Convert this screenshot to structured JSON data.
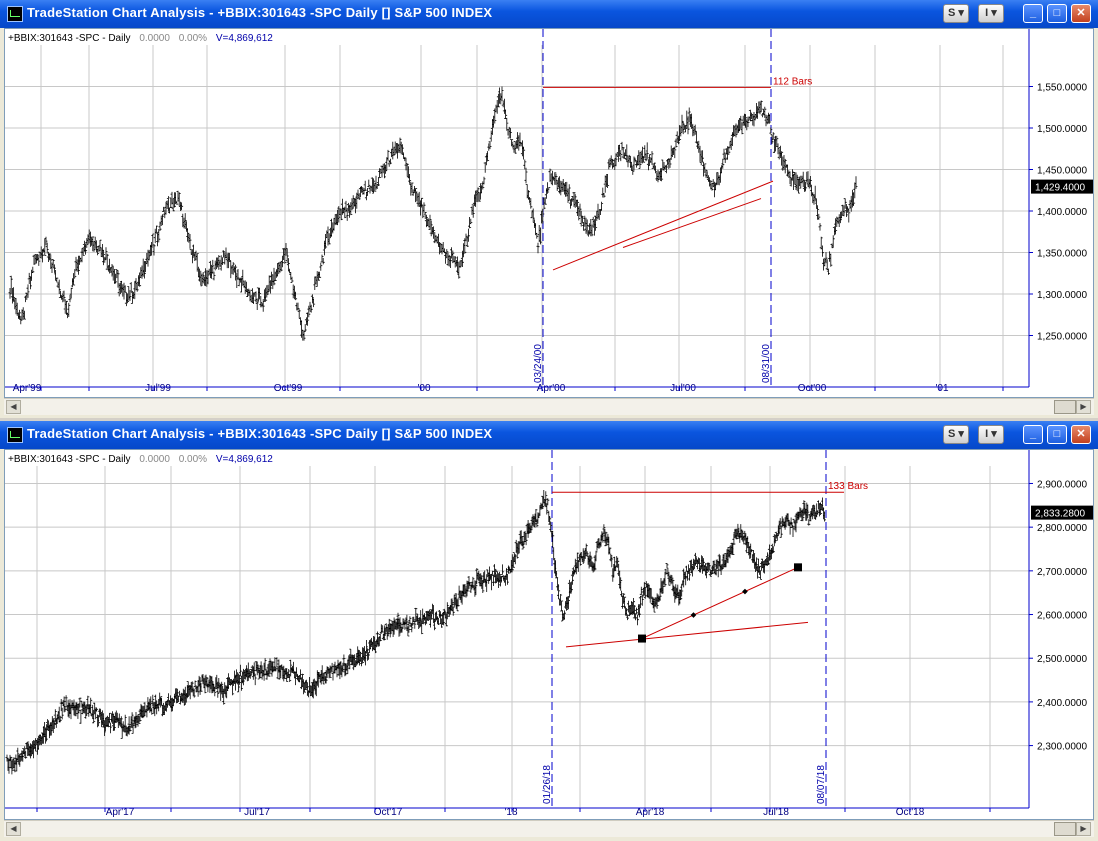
{
  "windows": [
    {
      "title": "TradeStation Chart Analysis - +BBIX:301643 -SPC Daily [] S&P 500 INDEX",
      "buttons": {
        "s_label": "S",
        "i_label": "I",
        "minimize": "_",
        "maximize": "□",
        "close": "✕"
      },
      "info": {
        "symbol": "+BBIX:301643 -SPC - Daily",
        "value": "0.0000",
        "pct": "0.00%",
        "volume": "V=4,869,612"
      },
      "chart_data": {
        "type": "ohlc",
        "frequency": "Daily",
        "ylim": [
          1200,
          1600
        ],
        "y_ticks": [
          1250,
          1300,
          1350,
          1400,
          1450,
          1500,
          1550
        ],
        "y_tick_labels": [
          "1,250.0000",
          "1,300.0000",
          "1,350.0000",
          "1,400.0000",
          "1,450.0000",
          "1,500.0000",
          "1,550.0000"
        ],
        "last_price": "1,429.4000",
        "x_labels": [
          "Apr'99",
          "Jul'99",
          "Oct'99",
          "'00",
          "Apr'00",
          "Jul'00",
          "Oct'00",
          "'01"
        ],
        "markers": [
          {
            "date": "03/24/00",
            "value": 1553
          },
          {
            "date": "08/31/00",
            "value": 1520
          }
        ],
        "bar_count": "112 Bars",
        "path": [
          [
            0,
            1310
          ],
          [
            10,
            1265
          ],
          [
            20,
            1340
          ],
          [
            30,
            1360
          ],
          [
            40,
            1310
          ],
          [
            48,
            1280
          ],
          [
            55,
            1330
          ],
          [
            65,
            1370
          ],
          [
            75,
            1355
          ],
          [
            85,
            1330
          ],
          [
            95,
            1300
          ],
          [
            105,
            1305
          ],
          [
            112,
            1335
          ],
          [
            120,
            1360
          ],
          [
            130,
            1405
          ],
          [
            140,
            1415
          ],
          [
            150,
            1360
          ],
          [
            160,
            1315
          ],
          [
            170,
            1330
          ],
          [
            180,
            1345
          ],
          [
            190,
            1320
          ],
          [
            200,
            1300
          ],
          [
            210,
            1290
          ],
          [
            220,
            1320
          ],
          [
            230,
            1350
          ],
          [
            240,
            1280
          ],
          [
            245,
            1250
          ],
          [
            255,
            1310
          ],
          [
            265,
            1370
          ],
          [
            275,
            1400
          ],
          [
            285,
            1405
          ],
          [
            295,
            1425
          ],
          [
            305,
            1430
          ],
          [
            315,
            1460
          ],
          [
            325,
            1480
          ],
          [
            335,
            1425
          ],
          [
            345,
            1400
          ],
          [
            355,
            1365
          ],
          [
            365,
            1345
          ],
          [
            375,
            1330
          ],
          [
            385,
            1400
          ],
          [
            395,
            1440
          ],
          [
            405,
            1525
          ],
          [
            410,
            1540
          ],
          [
            415,
            1495
          ],
          [
            420,
            1475
          ],
          [
            425,
            1490
          ],
          [
            430,
            1440
          ],
          [
            435,
            1400
          ],
          [
            440,
            1360
          ],
          [
            445,
            1400
          ],
          [
            450,
            1440
          ],
          [
            460,
            1430
          ],
          [
            470,
            1410
          ],
          [
            478,
            1385
          ],
          [
            484,
            1375
          ],
          [
            492,
            1400
          ],
          [
            500,
            1455
          ],
          [
            510,
            1470
          ],
          [
            520,
            1455
          ],
          [
            530,
            1470
          ],
          [
            540,
            1445
          ],
          [
            550,
            1460
          ],
          [
            560,
            1500
          ],
          [
            568,
            1510
          ],
          [
            575,
            1470
          ],
          [
            582,
            1440
          ],
          [
            588,
            1425
          ],
          [
            595,
            1460
          ],
          [
            605,
            1500
          ],
          [
            615,
            1510
          ],
          [
            625,
            1525
          ],
          [
            632,
            1505
          ],
          [
            640,
            1475
          ],
          [
            650,
            1440
          ],
          [
            658,
            1430
          ],
          [
            665,
            1440
          ],
          [
            672,
            1410
          ],
          [
            678,
            1340
          ],
          [
            682,
            1330
          ],
          [
            688,
            1385
          ],
          [
            695,
            1400
          ],
          [
            700,
            1400
          ],
          [
            705,
            1429
          ]
        ],
        "lines": [
          {
            "from": [
              0.0,
              1549
            ],
            "to": [
              228.0,
              1549
            ]
          },
          {
            "from": [
              10.0,
              1329
            ],
            "to": [
              230.0,
              1436
            ]
          },
          {
            "from": [
              80.0,
              1356
            ],
            "to": [
              218.0,
              1415
            ]
          }
        ]
      }
    },
    {
      "title": "TradeStation Chart Analysis - +BBIX:301643 -SPC Daily [] S&P 500 INDEX",
      "buttons": {
        "s_label": "S",
        "i_label": "I",
        "minimize": "_",
        "maximize": "□",
        "close": "✕"
      },
      "info": {
        "symbol": "+BBIX:301643 -SPC - Daily",
        "value": "0.0000",
        "pct": "0.00%",
        "volume": "V=4,869,612"
      },
      "chart_data": {
        "type": "ohlc",
        "frequency": "Daily",
        "ylim": [
          2180,
          2940
        ],
        "y_ticks": [
          2300,
          2400,
          2500,
          2600,
          2700,
          2800,
          2900
        ],
        "y_tick_labels": [
          "2,300.0000",
          "2,400.0000",
          "2,500.0000",
          "2,600.0000",
          "2,700.0000",
          "2,800.0000",
          "2,900.0000"
        ],
        "last_price": "2,833.2800",
        "x_labels": [
          "Apr'17",
          "Jul'17",
          "Oct'17",
          "'18",
          "Apr'18",
          "Jul'18",
          "Oct'18"
        ],
        "markers": [
          {
            "date": "01/26/18",
            "value": 2872
          },
          {
            "date": "08/07/18",
            "value": 2858
          }
        ],
        "bar_count": "133 Bars",
        "path": [
          [
            0,
            2260
          ],
          [
            10,
            2265
          ],
          [
            20,
            2290
          ],
          [
            30,
            2300
          ],
          [
            40,
            2330
          ],
          [
            50,
            2360
          ],
          [
            60,
            2395
          ],
          [
            70,
            2380
          ],
          [
            80,
            2385
          ],
          [
            90,
            2375
          ],
          [
            100,
            2345
          ],
          [
            110,
            2355
          ],
          [
            120,
            2340
          ],
          [
            130,
            2355
          ],
          [
            140,
            2380
          ],
          [
            150,
            2395
          ],
          [
            160,
            2390
          ],
          [
            170,
            2400
          ],
          [
            180,
            2420
          ],
          [
            190,
            2430
          ],
          [
            200,
            2445
          ],
          [
            210,
            2440
          ],
          [
            220,
            2425
          ],
          [
            230,
            2445
          ],
          [
            240,
            2460
          ],
          [
            250,
            2470
          ],
          [
            260,
            2475
          ],
          [
            270,
            2480
          ],
          [
            280,
            2470
          ],
          [
            290,
            2470
          ],
          [
            300,
            2445
          ],
          [
            305,
            2425
          ],
          [
            310,
            2435
          ],
          [
            320,
            2460
          ],
          [
            330,
            2470
          ],
          [
            340,
            2480
          ],
          [
            350,
            2490
          ],
          [
            360,
            2500
          ],
          [
            370,
            2525
          ],
          [
            380,
            2550
          ],
          [
            390,
            2570
          ],
          [
            400,
            2575
          ],
          [
            410,
            2580
          ],
          [
            420,
            2585
          ],
          [
            430,
            2600
          ],
          [
            440,
            2590
          ],
          [
            450,
            2610
          ],
          [
            460,
            2640
          ],
          [
            470,
            2660
          ],
          [
            480,
            2680
          ],
          [
            490,
            2685
          ],
          [
            500,
            2690
          ],
          [
            505,
            2680
          ],
          [
            510,
            2700
          ],
          [
            515,
            2740
          ],
          [
            520,
            2760
          ],
          [
            530,
            2795
          ],
          [
            540,
            2830
          ],
          [
            545,
            2870
          ],
          [
            550,
            2840
          ],
          [
            555,
            2740
          ],
          [
            560,
            2650
          ],
          [
            565,
            2590
          ],
          [
            570,
            2640
          ],
          [
            575,
            2690
          ],
          [
            580,
            2720
          ],
          [
            590,
            2740
          ],
          [
            595,
            2700
          ],
          [
            600,
            2760
          ],
          [
            605,
            2785
          ],
          [
            610,
            2770
          ],
          [
            615,
            2700
          ],
          [
            620,
            2720
          ],
          [
            625,
            2640
          ],
          [
            630,
            2600
          ],
          [
            635,
            2620
          ],
          [
            640,
            2600
          ],
          [
            645,
            2650
          ],
          [
            650,
            2670
          ],
          [
            655,
            2640
          ],
          [
            660,
            2625
          ],
          [
            665,
            2670
          ],
          [
            670,
            2700
          ],
          [
            675,
            2670
          ],
          [
            680,
            2640
          ],
          [
            685,
            2660
          ],
          [
            690,
            2700
          ],
          [
            700,
            2720
          ],
          [
            710,
            2700
          ],
          [
            720,
            2705
          ],
          [
            730,
            2720
          ],
          [
            735,
            2750
          ],
          [
            740,
            2775
          ],
          [
            745,
            2785
          ],
          [
            750,
            2770
          ],
          [
            755,
            2750
          ],
          [
            760,
            2720
          ],
          [
            765,
            2700
          ],
          [
            770,
            2715
          ],
          [
            775,
            2735
          ],
          [
            780,
            2775
          ],
          [
            785,
            2800
          ],
          [
            790,
            2810
          ],
          [
            795,
            2815
          ],
          [
            800,
            2800
          ],
          [
            805,
            2835
          ],
          [
            810,
            2840
          ],
          [
            815,
            2820
          ],
          [
            820,
            2835
          ],
          [
            825,
            2850
          ],
          [
            830,
            2833
          ]
        ],
        "lines": [
          {
            "from": [
              0.0,
              2880
            ],
            "to": [
              292.0,
              2880
            ]
          },
          {
            "from": [
              14.0,
              2526
            ],
            "to": [
              256.0,
              2582
            ]
          },
          {
            "from": [
              90.0,
              2545
            ],
            "to": [
              246.0,
              2708
            ]
          }
        ]
      }
    }
  ]
}
